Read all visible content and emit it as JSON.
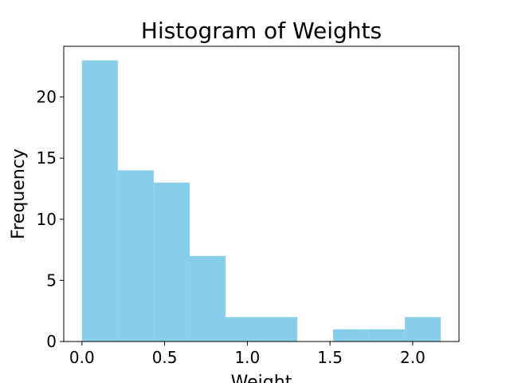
{
  "chart_data": {
    "type": "bar",
    "title": "Histogram of Weights",
    "xlabel": "Weight",
    "ylabel": "Frequency",
    "bin_edges": [
      0.0,
      0.217,
      0.434,
      0.651,
      0.868,
      1.085,
      1.302,
      1.519,
      1.736,
      1.953,
      2.17
    ],
    "values": [
      23,
      14,
      13,
      7,
      2,
      2,
      0,
      1,
      1,
      2
    ],
    "xlim": [
      -0.11,
      2.28
    ],
    "ylim": [
      0,
      24.15
    ],
    "x_ticks": [
      0.0,
      0.5,
      1.0,
      1.5,
      2.0
    ],
    "x_tick_labels": [
      "0.0",
      "0.5",
      "1.0",
      "1.5",
      "2.0"
    ],
    "y_ticks": [
      0,
      5,
      10,
      15,
      20
    ],
    "y_tick_labels": [
      "0",
      "5",
      "10",
      "15",
      "20"
    ],
    "bar_color": "#87CEEB",
    "grid": false,
    "legend": "none"
  }
}
